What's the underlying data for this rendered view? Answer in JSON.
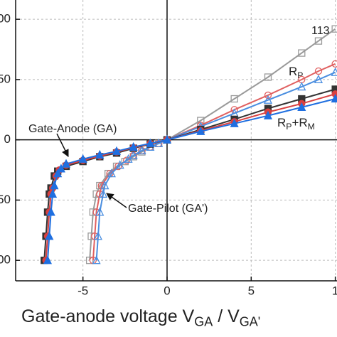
{
  "chart_data": {
    "type": "line",
    "xlim": [
      -9,
      10.1
    ],
    "ylim": [
      -117,
      116
    ],
    "xticks": [
      -5,
      0,
      5,
      {
        "value": 10,
        "label": "1"
      }
    ],
    "yticks": [
      {
        "value": 100,
        "label": "00"
      },
      {
        "value": 50,
        "label": "50"
      },
      0,
      {
        "value": -50,
        "label": "50"
      },
      {
        "value": -100,
        "label": "00"
      }
    ],
    "grid": true,
    "xlabel": [
      {
        "t": "Gate-anode voltage V"
      },
      {
        "t": "GA",
        "sub": true
      },
      {
        "t": " / V"
      },
      {
        "t": "GA'",
        "sub": true
      }
    ],
    "annotations": [
      [
        {
          "t": "113"
        }
      ],
      [
        {
          "t": "R"
        },
        {
          "t": "P",
          "sub": true
        }
      ],
      [
        {
          "t": "R"
        },
        {
          "t": "P",
          "sub": true
        },
        {
          "t": "+R"
        },
        {
          "t": "M",
          "sub": true
        }
      ],
      [
        {
          "t": "Gate-Anode (GA)"
        }
      ],
      [
        {
          "t": "Gate-Pilot (GA')"
        }
      ]
    ],
    "x": [
      -7.3,
      -7.2,
      -7.1,
      -7.0,
      -6.9,
      -6.7,
      -6.5,
      -6,
      -5,
      -4,
      -3,
      -2,
      -1,
      0,
      2,
      4,
      6,
      8,
      10
    ],
    "series": [
      {
        "color": "#9a9a9a",
        "marker": "square",
        "filled": false,
        "x": [
          -4.6,
          -4.5,
          -4.4,
          -4.2,
          -4.0,
          -3.5,
          -3.0,
          -2.5,
          -2,
          -1.5,
          -1,
          -0.5,
          0,
          2,
          4,
          6,
          8,
          9,
          10
        ],
        "values": [
          -100,
          -80,
          -60,
          -45,
          -38,
          -28,
          -22,
          -18,
          -14,
          -10,
          -6,
          -3,
          0,
          16,
          34,
          52,
          72,
          82,
          92
        ]
      },
      {
        "color": "#e06060",
        "marker": "circle",
        "filled": false,
        "x": [
          -4.4,
          -4.3,
          -4.2,
          -4.0,
          -3.9,
          -3.4,
          -2.9,
          -2.4,
          -2,
          -1.5,
          -1,
          -0.5,
          0,
          2,
          4,
          6,
          8,
          9,
          10
        ],
        "values": [
          -100,
          -80,
          -60,
          -45,
          -38,
          -28,
          -22,
          -17,
          -13,
          -9,
          -6,
          -3,
          0,
          12,
          25,
          37,
          50,
          57,
          63
        ]
      },
      {
        "color": "#4a8ee0",
        "marker": "triangle",
        "filled": false,
        "x": [
          -4.2,
          -4.1,
          -4.0,
          -3.8,
          -3.7,
          -3.3,
          -2.8,
          -2.3,
          -2,
          -1.5,
          -1,
          -0.5,
          0,
          2,
          4,
          6,
          8,
          9,
          10
        ],
        "values": [
          -100,
          -80,
          -60,
          -45,
          -38,
          -28,
          -21,
          -16,
          -13,
          -9,
          -6,
          -3,
          0,
          11,
          22,
          33,
          44,
          50,
          56
        ]
      },
      {
        "color": "#333333",
        "marker": "square",
        "filled": true,
        "x": [
          -7.3,
          -7.2,
          -7.1,
          -7.0,
          -6.9,
          -6.7,
          -6.5,
          -6,
          -5,
          -4,
          -3,
          -2,
          -1,
          0,
          2,
          4,
          6,
          8,
          10
        ],
        "values": [
          -100,
          -80,
          -60,
          -45,
          -40,
          -30,
          -26,
          -22,
          -18,
          -14,
          -11,
          -7,
          -3.5,
          0,
          8.5,
          17,
          26,
          34,
          42
        ]
      },
      {
        "color": "#d94040",
        "marker": "circle",
        "filled": true,
        "x": [
          -7.2,
          -7.1,
          -7.0,
          -6.9,
          -6.8,
          -6.6,
          -6.4,
          -6,
          -5,
          -4,
          -3,
          -2,
          -1,
          0,
          2,
          4,
          6,
          8,
          10
        ],
        "values": [
          -100,
          -80,
          -60,
          -45,
          -40,
          -30,
          -25,
          -21,
          -17,
          -13.5,
          -10,
          -6.5,
          -3.2,
          0,
          7.5,
          15,
          23,
          30,
          38
        ]
      },
      {
        "color": "#1f6fe0",
        "marker": "triangle",
        "filled": true,
        "x": [
          -7.1,
          -7.0,
          -6.9,
          -6.8,
          -6.7,
          -6.5,
          -6.3,
          -6,
          -5,
          -4,
          -3,
          -2,
          -1,
          0,
          2,
          4,
          6,
          8,
          10
        ],
        "values": [
          -100,
          -80,
          -60,
          -45,
          -38,
          -28,
          -24,
          -20,
          -16,
          -12.5,
          -9.5,
          -6,
          -3,
          0,
          7,
          13.5,
          20,
          27,
          34
        ]
      }
    ]
  }
}
